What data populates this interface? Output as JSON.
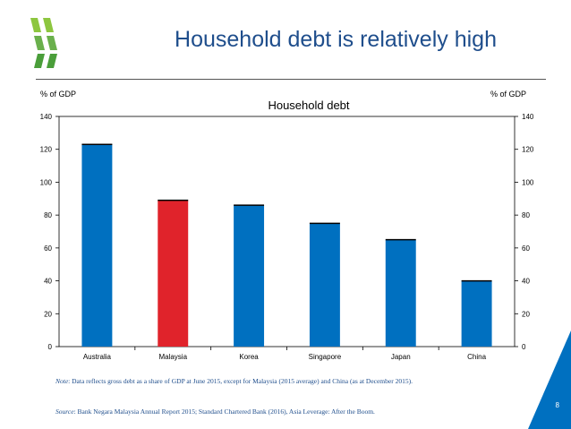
{
  "slide": {
    "title": "Household debt is relatively high",
    "page_number": "8"
  },
  "footnotes": {
    "note_label": "Note",
    "note_text": ": Data reflects gross debt as a share of GDP at June 2015, except for Malaysia (2015 average) and China (as at December 2015).",
    "source_label": "Source",
    "source_text": ": Bank Negara Malaysia Annual Report 2015; Standard Chartered Bank (2016), Asia Leverage: After the Boom."
  },
  "colors": {
    "title": "#1f4e8c",
    "bar_default": "#0070c0",
    "bar_highlight": "#e0232b",
    "logo": "#8dc63f",
    "corner": "#0070c0"
  },
  "chart_data": {
    "type": "bar",
    "title": "Household debt",
    "ylabel_left": "% of GDP",
    "ylabel_right": "% of GDP",
    "categories": [
      "Australia",
      "Malaysia",
      "Korea",
      "Singapore",
      "Japan",
      "China"
    ],
    "values": [
      123,
      89,
      86,
      75,
      65,
      40
    ],
    "highlight": "Malaysia",
    "ylim": [
      0,
      140
    ],
    "yticks": [
      0,
      20,
      40,
      60,
      80,
      100,
      120,
      140
    ],
    "grid": false,
    "legend": "none"
  }
}
